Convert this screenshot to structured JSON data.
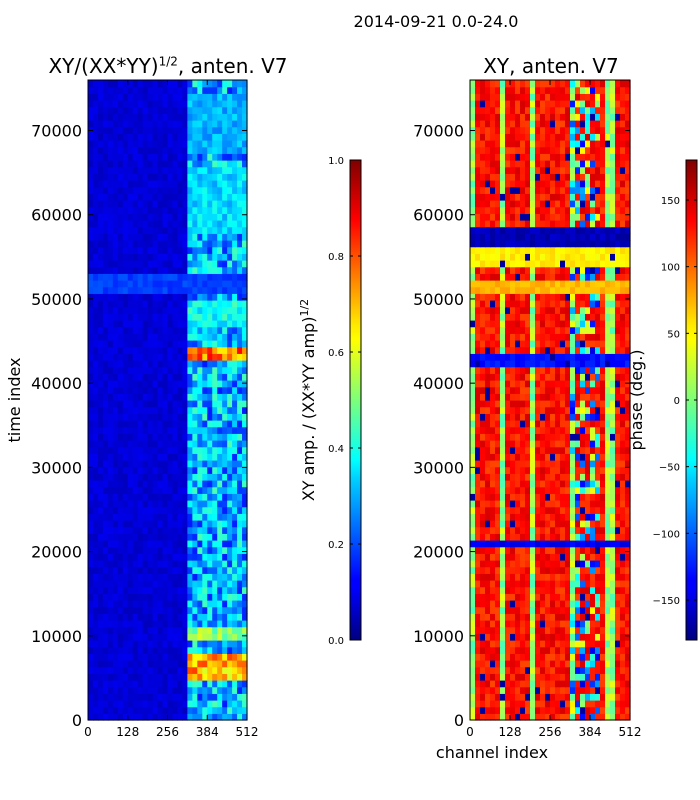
{
  "figure": {
    "suptitle": "2014-09-21 0.0-24.0"
  },
  "chart_data": [
    {
      "type": "heatmap",
      "title": "XY/(XX*YY)",
      "title_power": "1/2",
      "title_suffix": ", anten. V7",
      "xlabel": "",
      "ylabel": "time index",
      "xlim": [
        0,
        512
      ],
      "ylim": [
        0,
        76000
      ],
      "x_ticks": [
        "0",
        "128",
        "256",
        "384",
        "512"
      ],
      "x_tick_values": [
        0,
        128,
        256,
        384,
        512
      ],
      "y_ticks": [
        "0",
        "10000",
        "20000",
        "30000",
        "40000",
        "50000",
        "60000",
        "70000"
      ],
      "y_tick_values": [
        0,
        10000,
        20000,
        30000,
        40000,
        50000,
        60000,
        70000
      ],
      "colormap": "jet",
      "colorbar": {
        "label": "XY amp. / (XX*YY amp)",
        "label_power": "1/2",
        "range": [
          0.0,
          1.0
        ],
        "ticks": [
          "0.0",
          "0.2",
          "0.4",
          "0.6",
          "0.8",
          "1.0"
        ],
        "tick_values": [
          0.0,
          0.2,
          0.4,
          0.6,
          0.8,
          1.0
        ]
      },
      "background_value": 0.06,
      "active_channels": [
        320,
        512
      ],
      "active_value": 0.3,
      "high_bands": [
        {
          "t": [
            5000,
            7800
          ],
          "value": 0.82
        },
        {
          "t": [
            9200,
            10800
          ],
          "value": 0.6
        },
        {
          "t": [
            42800,
            44600
          ],
          "value": 0.88
        },
        {
          "t": [
            47000,
            50000
          ],
          "value": 0.45
        },
        {
          "t": [
            58000,
            66000
          ],
          "value": 0.4
        },
        {
          "t": [
            67000,
            74500
          ],
          "value": 0.35
        }
      ],
      "band_stripes": [
        {
          "t": [
            50800,
            53200
          ],
          "value": 0.16
        }
      ]
    },
    {
      "type": "heatmap",
      "title": "XY, anten. V7",
      "xlabel": "channel index",
      "ylabel": "",
      "xlim": [
        0,
        512
      ],
      "ylim": [
        0,
        76000
      ],
      "x_ticks": [
        "0",
        "128",
        "256",
        "384",
        "512"
      ],
      "x_tick_values": [
        0,
        128,
        256,
        384,
        512
      ],
      "y_ticks": [
        "0",
        "10000",
        "20000",
        "30000",
        "40000",
        "50000",
        "60000",
        "70000"
      ],
      "y_tick_values": [
        0,
        10000,
        20000,
        30000,
        40000,
        50000,
        60000,
        70000
      ],
      "colormap": "jet",
      "colorbar": {
        "label": "phase (deg.)",
        "range": [
          -180,
          180
        ],
        "ticks": [
          "−150",
          "−100",
          "−50",
          "0",
          "50",
          "100",
          "150"
        ],
        "tick_values": [
          -150,
          -100,
          -50,
          0,
          50,
          100,
          150
        ]
      },
      "background_value": 150,
      "cool_columns": [
        [
          0,
          20
        ],
        [
          100,
          118
        ],
        [
          200,
          215
        ],
        [
          320,
          340
        ],
        [
          440,
          460
        ]
      ],
      "blue_bands": [
        {
          "t": [
            56500,
            58500
          ],
          "value": -170
        },
        {
          "t": [
            20500,
            21200
          ],
          "value": -150
        },
        {
          "t": [
            42000,
            43500
          ],
          "value": -140
        }
      ],
      "yellow_bands": [
        {
          "t": [
            53500,
            56000
          ],
          "value": 40
        },
        {
          "t": [
            51000,
            52500
          ],
          "value": 60
        }
      ]
    }
  ]
}
